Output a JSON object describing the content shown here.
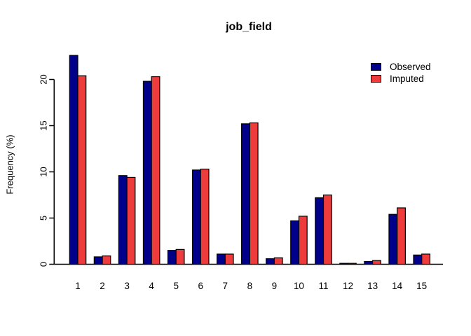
{
  "chart_data": {
    "type": "bar",
    "title": "job_field",
    "xlabel": "",
    "ylabel": "Frequency (%)",
    "categories": [
      "1",
      "2",
      "3",
      "4",
      "5",
      "6",
      "7",
      "8",
      "9",
      "10",
      "11",
      "12",
      "13",
      "14",
      "15"
    ],
    "series": [
      {
        "name": "Observed",
        "color": "#00008B",
        "values": [
          22.6,
          0.8,
          9.6,
          19.8,
          1.5,
          10.2,
          1.1,
          15.2,
          0.6,
          4.7,
          7.2,
          0.1,
          0.3,
          5.4,
          1.0
        ]
      },
      {
        "name": "Imputed",
        "color": "#EE3B3B",
        "values": [
          20.4,
          0.9,
          9.4,
          20.3,
          1.6,
          10.3,
          1.1,
          15.3,
          0.7,
          5.2,
          7.5,
          0.1,
          0.4,
          6.1,
          1.1
        ]
      }
    ],
    "yticks": [
      0,
      5,
      10,
      15,
      20
    ],
    "ylim": [
      0,
      24
    ],
    "grid": false,
    "legend_position": "top-right",
    "bar_border_color": "#000000",
    "axis_color": "#000000"
  }
}
